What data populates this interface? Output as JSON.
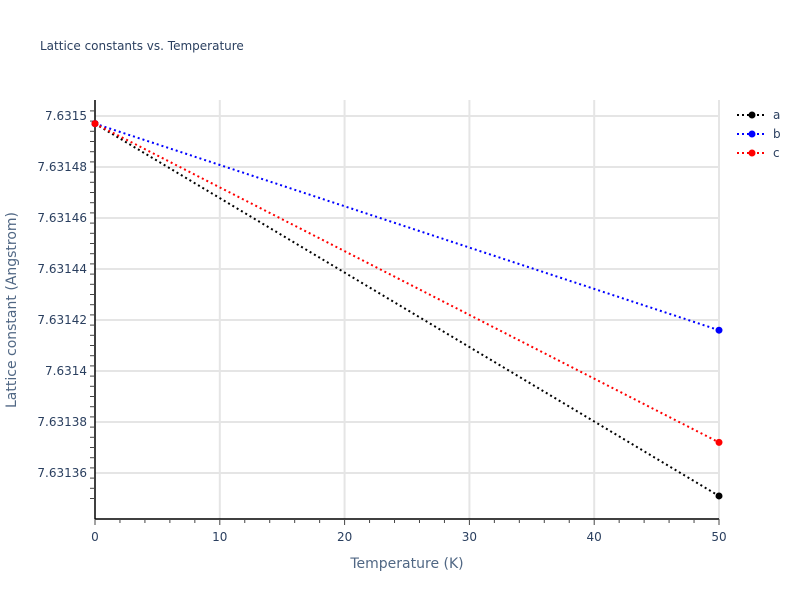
{
  "chart_data": {
    "type": "line",
    "title": "Lattice constants vs. Temperature",
    "xlabel": "Temperature (K)",
    "ylabel": "Lattice constant (Angstrom)",
    "x": [
      0,
      50
    ],
    "xlim": [
      0,
      50
    ],
    "ylim": [
      7.631345,
      7.631506
    ],
    "x_ticks": [
      "0",
      "10",
      "20",
      "30",
      "40",
      "50"
    ],
    "x_tick_values": [
      0,
      10,
      20,
      30,
      40,
      50
    ],
    "y_ticks": [
      "7.63136",
      "7.63138",
      "7.6314",
      "7.63142",
      "7.63144",
      "7.63146",
      "7.63148",
      "7.6315"
    ],
    "y_tick_values": [
      7.63136,
      7.63138,
      7.6314,
      7.63142,
      7.63144,
      7.63146,
      7.63148,
      7.6315
    ],
    "grid": true,
    "legend_position": "top-right",
    "series": [
      {
        "name": "a",
        "color": "#000000",
        "line": "dotted",
        "values": [
          7.631497,
          7.631351
        ]
      },
      {
        "name": "b",
        "color": "#0000ff",
        "line": "dotted",
        "values": [
          7.631497,
          7.631416
        ]
      },
      {
        "name": "c",
        "color": "#ff0000",
        "line": "dotted",
        "values": [
          7.631497,
          7.631372
        ]
      }
    ]
  }
}
